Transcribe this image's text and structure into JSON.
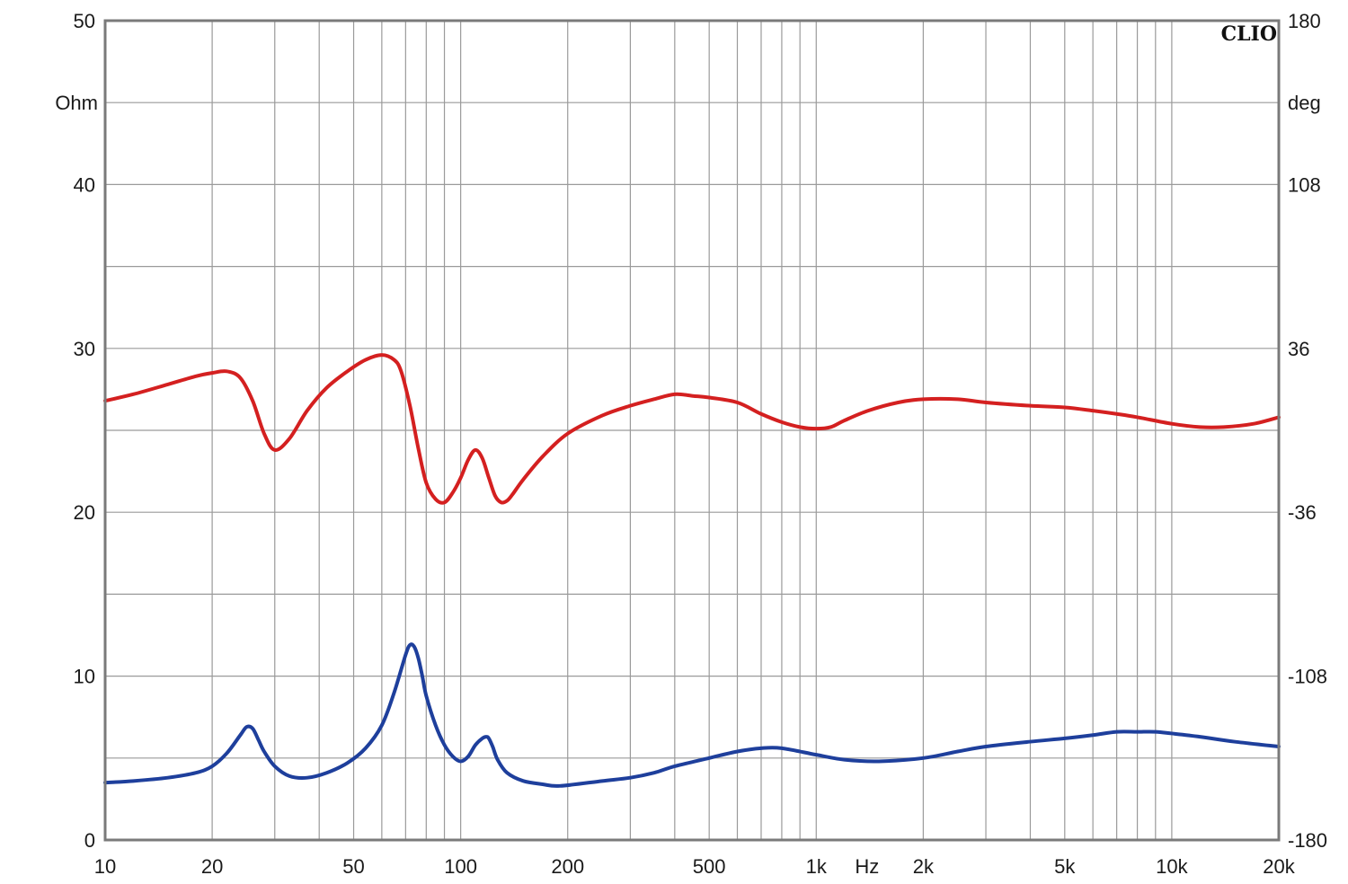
{
  "chart_data": {
    "type": "line",
    "brand": "CLIO",
    "x_scale": "log",
    "xlim": [
      10,
      20000
    ],
    "x_unit": "Hz",
    "x_ticks": [
      {
        "v": 10,
        "label": "10"
      },
      {
        "v": 20,
        "label": "20"
      },
      {
        "v": 50,
        "label": "50"
      },
      {
        "v": 100,
        "label": "100"
      },
      {
        "v": 200,
        "label": "200"
      },
      {
        "v": 500,
        "label": "500"
      },
      {
        "v": 1000,
        "label": "1k"
      },
      {
        "v": 2000,
        "label": "2k"
      },
      {
        "v": 5000,
        "label": "5k"
      },
      {
        "v": 10000,
        "label": "10k"
      },
      {
        "v": 20000,
        "label": "20k"
      }
    ],
    "y_left": {
      "unit": "Ohm",
      "ylim": [
        0,
        50
      ],
      "ticks": [
        {
          "v": 0,
          "label": "0"
        },
        {
          "v": 10,
          "label": "10"
        },
        {
          "v": 20,
          "label": "20"
        },
        {
          "v": 30,
          "label": "30"
        },
        {
          "v": 40,
          "label": "40"
        },
        {
          "v": 50,
          "label": "50"
        }
      ]
    },
    "y_right": {
      "unit": "deg",
      "ylim": [
        -180,
        180
      ],
      "ticks": [
        {
          "v": -180,
          "label": "-180"
        },
        {
          "v": -108,
          "label": "-108"
        },
        {
          "v": -36,
          "label": "-36"
        },
        {
          "v": 36,
          "label": "36"
        },
        {
          "v": 108,
          "label": "108"
        },
        {
          "v": 180,
          "label": "180"
        }
      ]
    },
    "grid": true,
    "series": [
      {
        "color": "#d42020",
        "axis": "left",
        "x": [
          10,
          12,
          15,
          18,
          20,
          22,
          24,
          26,
          28,
          30,
          33,
          37,
          42,
          48,
          54,
          60,
          65,
          68,
          72,
          76,
          80,
          85,
          90,
          95,
          100,
          105,
          110,
          115,
          120,
          125,
          130,
          135,
          140,
          150,
          170,
          200,
          250,
          300,
          350,
          400,
          450,
          500,
          600,
          700,
          800,
          900,
          1000,
          1100,
          1200,
          1400,
          1700,
          2000,
          2500,
          3000,
          4000,
          5000,
          6000,
          7000,
          8000,
          10000,
          12000,
          14000,
          17000,
          20000
        ],
        "y": [
          26.8,
          27.2,
          27.8,
          28.3,
          28.5,
          28.6,
          28.2,
          26.8,
          24.8,
          23.8,
          24.5,
          26.2,
          27.6,
          28.6,
          29.3,
          29.6,
          29.3,
          28.6,
          26.5,
          23.9,
          21.8,
          20.8,
          20.6,
          21.2,
          22.1,
          23.2,
          23.8,
          23.3,
          22.1,
          21.0,
          20.6,
          20.7,
          21.1,
          22.0,
          23.4,
          24.8,
          25.9,
          26.5,
          26.9,
          27.2,
          27.1,
          27.0,
          26.7,
          26.0,
          25.5,
          25.2,
          25.1,
          25.2,
          25.6,
          26.2,
          26.7,
          26.9,
          26.9,
          26.7,
          26.5,
          26.4,
          26.2,
          26.0,
          25.8,
          25.4,
          25.2,
          25.2,
          25.4,
          25.8
        ]
      },
      {
        "color": "#1e3f9c",
        "axis": "left",
        "x": [
          10,
          12,
          15,
          18,
          20,
          22,
          24,
          25,
          26,
          27,
          28,
          30,
          33,
          37,
          42,
          48,
          54,
          60,
          65,
          70,
          72,
          74,
          76,
          78,
          80,
          85,
          90,
          95,
          100,
          105,
          110,
          115,
          118,
          120,
          123,
          127,
          135,
          150,
          170,
          190,
          250,
          300,
          350,
          400,
          500,
          600,
          700,
          800,
          1000,
          1200,
          1500,
          2000,
          2500,
          3000,
          4000,
          5000,
          6000,
          7000,
          8000,
          9000,
          10000,
          12000,
          15000,
          20000
        ],
        "y": [
          3.5,
          3.6,
          3.8,
          4.1,
          4.5,
          5.3,
          6.4,
          6.9,
          6.8,
          6.1,
          5.4,
          4.5,
          3.9,
          3.8,
          4.1,
          4.7,
          5.6,
          7.0,
          9.0,
          11.3,
          11.9,
          11.8,
          11.1,
          10.0,
          8.8,
          7.0,
          5.8,
          5.1,
          4.8,
          5.1,
          5.8,
          6.2,
          6.3,
          6.2,
          5.7,
          4.9,
          4.1,
          3.6,
          3.4,
          3.3,
          3.6,
          3.8,
          4.1,
          4.5,
          5.0,
          5.4,
          5.6,
          5.6,
          5.2,
          4.9,
          4.8,
          5.0,
          5.4,
          5.7,
          6.0,
          6.2,
          6.4,
          6.6,
          6.6,
          6.6,
          6.5,
          6.3,
          6.0,
          5.7
        ]
      }
    ]
  }
}
